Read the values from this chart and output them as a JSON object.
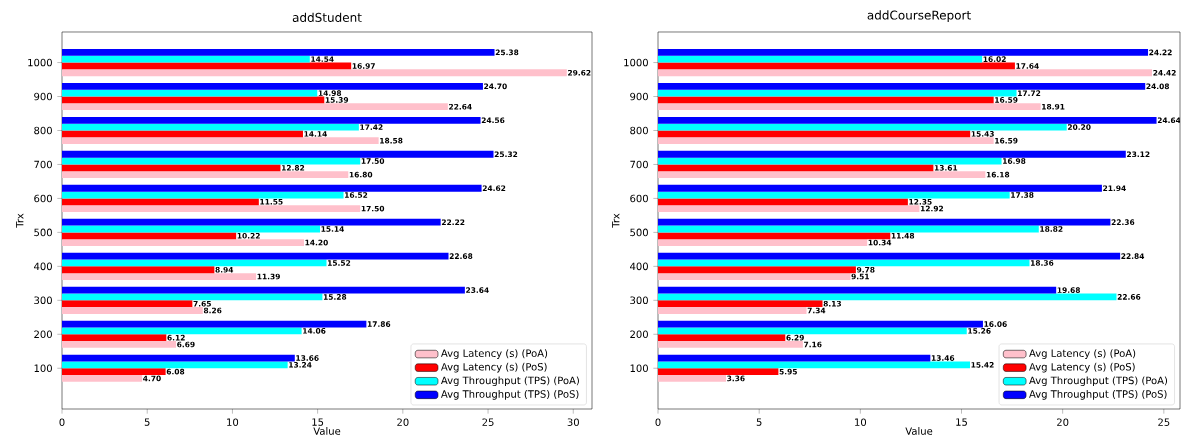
{
  "chart_data": [
    {
      "type": "bar",
      "orientation": "horizontal",
      "title": "addStudent",
      "xlabel": "Value",
      "ylabel": "Trx",
      "categories": [
        "1000",
        "900",
        "800",
        "700",
        "600",
        "500",
        "400",
        "300",
        "200",
        "100"
      ],
      "xlim": [
        0,
        31.1
      ],
      "xticks": [
        0,
        5,
        10,
        15,
        20,
        25,
        30
      ],
      "grid": false,
      "legend": "bottom right",
      "series": [
        {
          "name": "Avg Latency (s) (PoA)",
          "color": "#ffc0cb",
          "values": [
            29.62,
            22.64,
            18.58,
            16.8,
            17.5,
            14.2,
            11.39,
            8.26,
            6.69,
            4.7
          ],
          "value_labels": [
            "29.62",
            "22.64",
            "18.58",
            "16.80",
            "17.50",
            "14.20",
            "11.39",
            "8.26",
            "6.69",
            "4.70"
          ]
        },
        {
          "name": "Avg Latency (s) (PoS)",
          "color": "#ff0000",
          "values": [
            16.97,
            15.39,
            14.14,
            12.82,
            11.55,
            10.22,
            8.94,
            7.65,
            6.12,
            6.08
          ],
          "value_labels": [
            "16.97",
            "15.39",
            "14.14",
            "12.82",
            "11.55",
            "10.22",
            "8.94",
            "7.65",
            "6.12",
            "6.08"
          ]
        },
        {
          "name": "Avg Throughput (TPS) (PoA)",
          "color": "#00ffff",
          "values": [
            14.54,
            14.98,
            17.42,
            17.5,
            16.52,
            15.14,
            15.52,
            15.28,
            14.06,
            13.24
          ],
          "value_labels": [
            "14.54",
            "14.98",
            "17.42",
            "17.50",
            "16.52",
            "15.14",
            "15.52",
            "15.28",
            "14.06",
            "13.24"
          ]
        },
        {
          "name": "Avg Throughput (TPS) (PoS)",
          "color": "#0000ff",
          "values": [
            25.38,
            24.7,
            24.56,
            25.32,
            24.62,
            22.22,
            22.68,
            23.64,
            17.86,
            13.66
          ],
          "value_labels": [
            "25.38",
            "24.70",
            "24.56",
            "25.32",
            "24.62",
            "22.22",
            "22.68",
            "23.64",
            "17.86",
            "13.66"
          ]
        }
      ]
    },
    {
      "type": "bar",
      "orientation": "horizontal",
      "title": "addCourseReport",
      "xlabel": "Value",
      "ylabel": "Trx",
      "categories": [
        "1000",
        "900",
        "800",
        "700",
        "600",
        "500",
        "400",
        "300",
        "200",
        "100"
      ],
      "xlim": [
        0,
        25.8
      ],
      "xticks": [
        0,
        5,
        10,
        15,
        20,
        25
      ],
      "grid": false,
      "legend": "bottom right",
      "series": [
        {
          "name": "Avg Latency (s) (PoA)",
          "color": "#ffc0cb",
          "values": [
            24.42,
            18.91,
            16.59,
            16.18,
            12.92,
            10.34,
            9.51,
            7.34,
            7.16,
            3.36
          ],
          "value_labels": [
            "24.42",
            "18.91",
            "16.59",
            "16.18",
            "12.92",
            "10.34",
            "9.51",
            "7.34",
            "7.16",
            "3.36"
          ]
        },
        {
          "name": "Avg Latency (s) (PoS)",
          "color": "#ff0000",
          "values": [
            17.64,
            16.59,
            15.43,
            13.61,
            12.35,
            11.48,
            9.78,
            8.13,
            6.29,
            5.95
          ],
          "value_labels": [
            "17.64",
            "16.59",
            "15.43",
            "13.61",
            "12.35",
            "11.48",
            "9.78",
            "8.13",
            "6.29",
            "5.95"
          ]
        },
        {
          "name": "Avg Throughput (TPS) (PoA)",
          "color": "#00ffff",
          "values": [
            16.02,
            17.72,
            20.2,
            16.98,
            17.38,
            18.82,
            18.36,
            22.66,
            15.26,
            15.42
          ],
          "value_labels": [
            "16.02",
            "17.72",
            "20.20",
            "16.98",
            "17.38",
            "18.82",
            "18.36",
            "22.66",
            "15.26",
            "15.42"
          ]
        },
        {
          "name": "Avg Throughput (TPS) (PoS)",
          "color": "#0000ff",
          "values": [
            24.22,
            24.08,
            24.64,
            23.12,
            21.94,
            22.36,
            22.84,
            19.68,
            16.06,
            13.46
          ],
          "value_labels": [
            "24.22",
            "24.08",
            "24.64",
            "23.12",
            "21.94",
            "22.36",
            "22.84",
            "19.68",
            "16.06",
            "13.46"
          ]
        }
      ]
    }
  ]
}
